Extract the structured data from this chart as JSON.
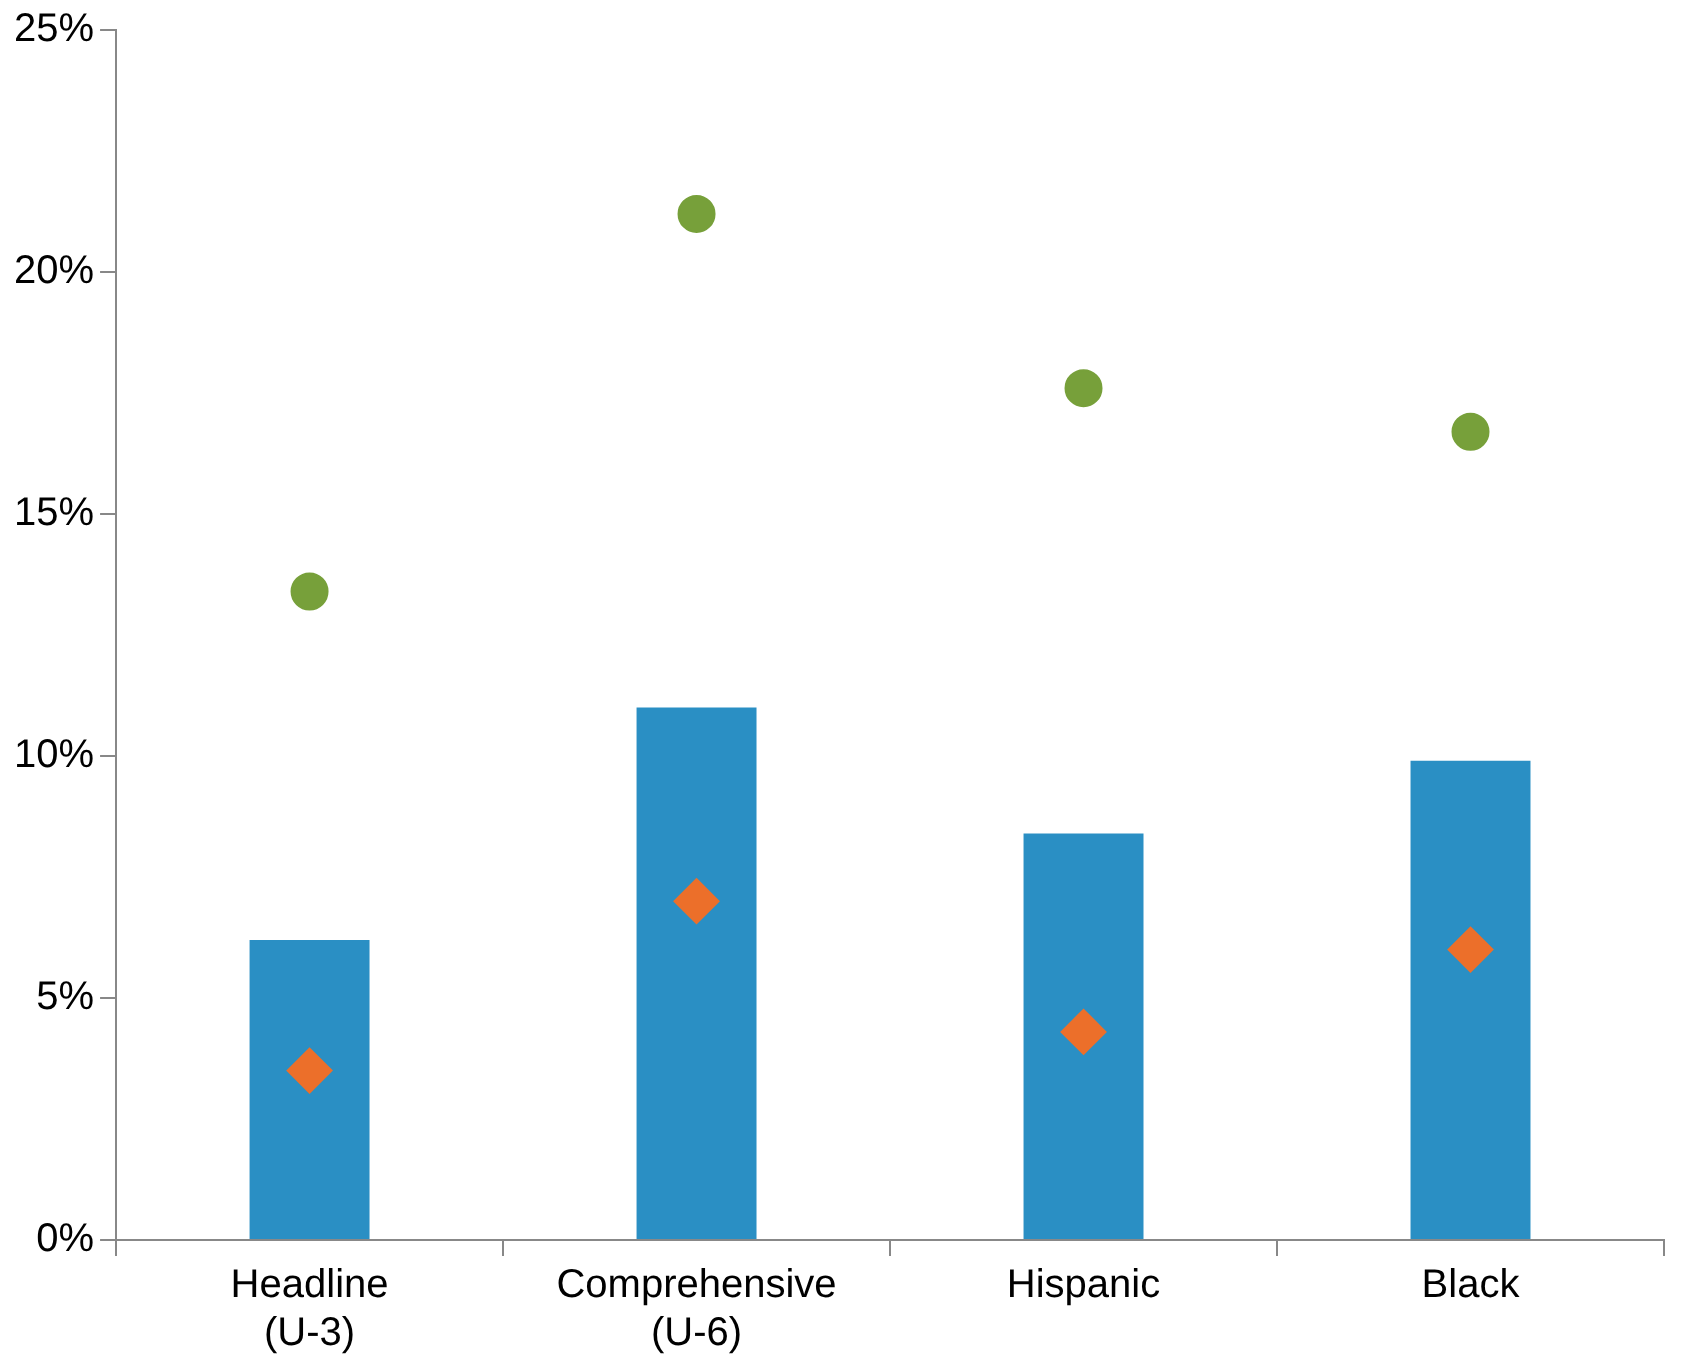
{
  "chart_data": {
    "type": "bar",
    "categories": [
      "Headline\n(U-3)",
      "Comprehensive\n(U-6)",
      "Hispanic",
      "Black"
    ],
    "series": [
      {
        "color": "#2a8fc4",
        "values": [
          6.2,
          11.0,
          8.4,
          9.9
        ]
      },
      {
        "type": "scatter",
        "marker": "circle",
        "color": "#77a03a",
        "values": [
          13.4,
          21.2,
          17.6,
          16.7
        ]
      },
      {
        "type": "scatter",
        "marker": "diamond",
        "color": "#ec6f2a",
        "values": [
          3.5,
          7.0,
          4.3,
          6.0
        ]
      }
    ],
    "ylim": [
      0,
      25
    ],
    "yticks": [
      {
        "value": 0,
        "label": "0%"
      },
      {
        "value": 5,
        "label": "5%"
      },
      {
        "value": 10,
        "label": "10%"
      },
      {
        "value": 15,
        "label": "15%"
      },
      {
        "value": 20,
        "label": "20%"
      },
      {
        "value": 25,
        "label": "25%"
      }
    ],
    "grid": false,
    "legend": false
  }
}
